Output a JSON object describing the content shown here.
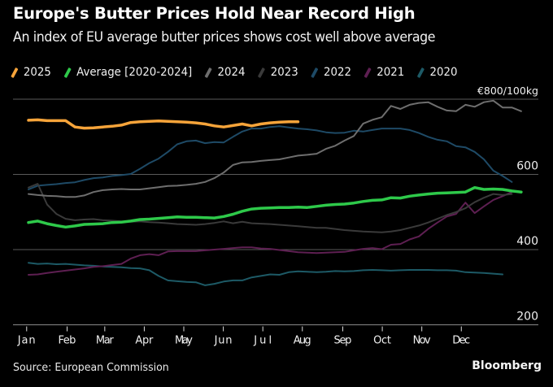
{
  "header": {
    "title": "Europe's Butter Prices Hold Near Record High",
    "subtitle": "An index of EU average butter prices shows cost well above average"
  },
  "footer": {
    "source": "Source: European Commission",
    "brand": "Bloomberg"
  },
  "chart_data": {
    "type": "line",
    "title": "Europe's Butter Prices Hold Near Record High",
    "subtitle": "An index of EU average butter prices shows cost well above average",
    "xlabel": "",
    "ylabel": "€/100kg",
    "unit_label": "€800/100kg",
    "x_unit": "week of year",
    "xlim": [
      0,
      52.5
    ],
    "ylim": [
      180,
      840
    ],
    "grid": true,
    "legend_position": "top",
    "x_ticks": [
      {
        "label": "Jan",
        "week": 0.6
      },
      {
        "label": "Feb",
        "week": 5.0
      },
      {
        "label": "Mar",
        "week": 9.1
      },
      {
        "label": "Apr",
        "week": 13.4
      },
      {
        "label": "May",
        "week": 17.7
      },
      {
        "label": "Jun",
        "week": 22.0
      },
      {
        "label": "Jul",
        "week": 26.3
      },
      {
        "label": "Aug",
        "week": 30.6
      },
      {
        "label": "Sep",
        "week": 35.0
      },
      {
        "label": "Oct",
        "week": 39.3
      },
      {
        "label": "Nov",
        "week": 43.6
      },
      {
        "label": "Dec",
        "week": 47.9
      }
    ],
    "y_ticks": [
      {
        "label": "€800/100kg",
        "value": 800
      },
      {
        "label": "600",
        "value": 600
      },
      {
        "label": "400",
        "value": 400
      },
      {
        "label": "200",
        "value": 200
      }
    ],
    "series": [
      {
        "name": "2020",
        "color": "#1d5a66",
        "width": 2,
        "values": [
          365,
          362,
          363,
          361,
          362,
          360,
          358,
          357,
          355,
          354,
          353,
          351,
          350,
          345,
          330,
          318,
          316,
          314,
          313,
          305,
          309,
          315,
          318,
          318,
          326,
          330,
          334,
          333,
          340,
          342,
          341,
          340,
          341,
          343,
          342,
          343,
          345,
          346,
          345,
          344,
          345,
          346,
          346,
          346,
          345,
          345,
          344,
          340,
          339,
          338,
          336,
          334
        ]
      },
      {
        "name": "2021",
        "color": "#5e1f52",
        "width": 2,
        "values": [
          333,
          334,
          338,
          341,
          344,
          347,
          350,
          354,
          356,
          359,
          362,
          376,
          385,
          388,
          385,
          395,
          396,
          396,
          396,
          398,
          400,
          402,
          404,
          406,
          406,
          403,
          402,
          399,
          396,
          393,
          392,
          391,
          392,
          393,
          394,
          398,
          402,
          404,
          401,
          413,
          415,
          427,
          435,
          455,
          472,
          488,
          495,
          525,
          497,
          515,
          532,
          542,
          553
        ]
      },
      {
        "name": "2022",
        "color": "#1e4a66",
        "width": 2,
        "values": [
          560,
          570,
          572,
          574,
          577,
          579,
          585,
          590,
          592,
          596,
          598,
          601,
          615,
          630,
          642,
          660,
          680,
          688,
          690,
          683,
          686,
          685,
          700,
          714,
          722,
          722,
          726,
          728,
          725,
          722,
          720,
          717,
          712,
          710,
          711,
          716,
          714,
          718,
          722,
          722,
          722,
          718,
          710,
          700,
          692,
          688,
          675,
          672,
          660,
          640,
          610,
          596,
          580
        ]
      },
      {
        "name": "2023",
        "color": "#3a3a3a",
        "width": 2,
        "values": [
          565,
          575,
          520,
          495,
          482,
          478,
          480,
          481,
          478,
          477,
          475,
          474,
          475,
          473,
          472,
          470,
          468,
          467,
          466,
          468,
          471,
          475,
          470,
          474,
          470,
          469,
          468,
          466,
          464,
          462,
          460,
          458,
          458,
          455,
          452,
          450,
          448,
          447,
          446,
          448,
          452,
          458,
          464,
          472,
          482,
          492,
          500,
          510,
          526,
          538,
          548,
          545,
          548
        ]
      },
      {
        "name": "2024",
        "color": "#6e6e6e",
        "width": 2,
        "values": [
          548,
          545,
          543,
          542,
          540,
          540,
          544,
          553,
          558,
          560,
          561,
          560,
          560,
          563,
          566,
          569,
          570,
          572,
          575,
          580,
          590,
          605,
          625,
          632,
          633,
          636,
          638,
          640,
          645,
          650,
          652,
          655,
          668,
          676,
          690,
          702,
          735,
          745,
          752,
          782,
          774,
          785,
          790,
          792,
          780,
          770,
          768,
          785,
          780,
          792,
          796,
          778,
          778,
          768
        ]
      },
      {
        "name": "Average [2020-2024]",
        "color": "#2ec94a",
        "width": 3.5,
        "values": [
          472,
          476,
          469,
          464,
          460,
          463,
          467,
          468,
          469,
          472,
          473,
          476,
          480,
          481,
          483,
          485,
          487,
          486,
          486,
          485,
          484,
          488,
          494,
          502,
          508,
          510,
          511,
          512,
          512,
          513,
          512,
          515,
          518,
          520,
          521,
          524,
          528,
          531,
          532,
          538,
          537,
          542,
          545,
          548,
          550,
          551,
          552,
          553,
          565,
          560,
          561,
          560,
          556,
          553
        ]
      },
      {
        "name": "2025",
        "color": "#f6a43a",
        "width": 3.5,
        "values": [
          744,
          745,
          743,
          743,
          743,
          726,
          723,
          724,
          726,
          728,
          731,
          738,
          740,
          741,
          742,
          741,
          740,
          739,
          737,
          734,
          729,
          726,
          730,
          734,
          729,
          734,
          737,
          739,
          740,
          740
        ]
      }
    ]
  }
}
